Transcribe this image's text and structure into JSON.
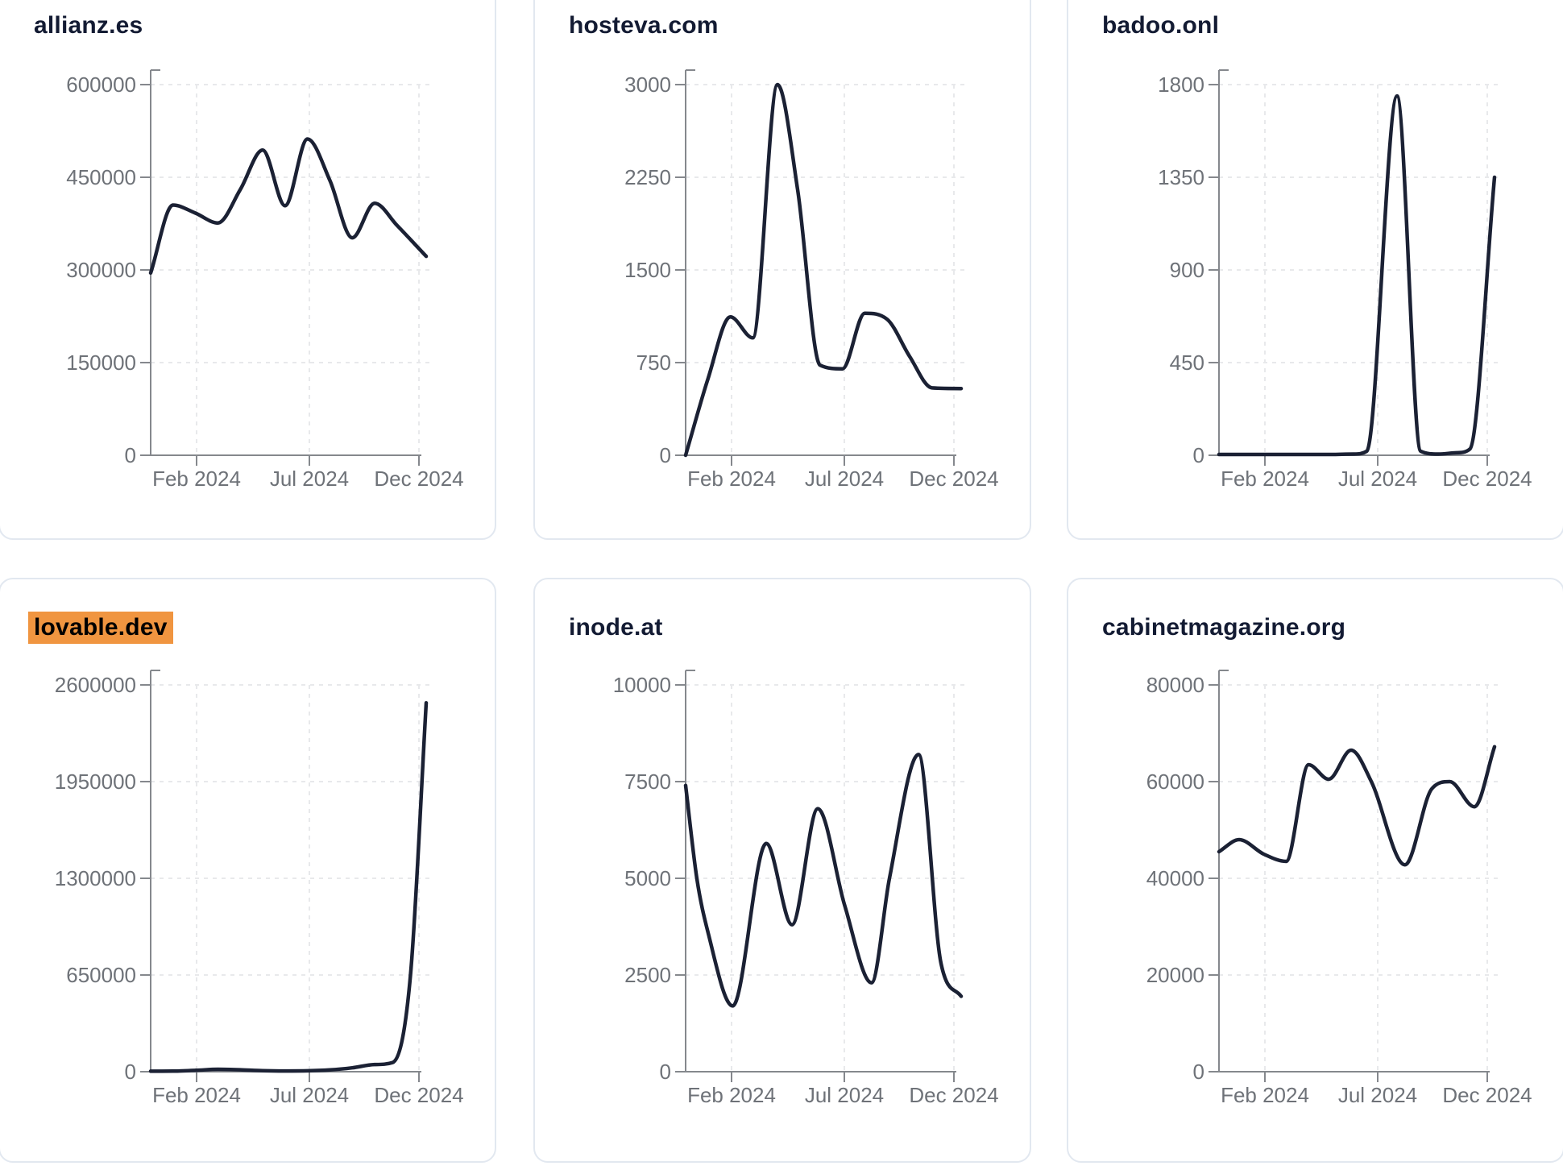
{
  "colors": {
    "line": "#1b2134",
    "title_text": "#131b33",
    "highlight": "#f09540",
    "highlight_text": "#000000",
    "axis": "#85888d",
    "grid": "#e8e9eb",
    "tick_text": "#6e7278",
    "card_border": "#e2e8f0",
    "background": "#ffffff"
  },
  "chart_data": [
    {
      "type": "line",
      "title": "allianz.es",
      "highlighted": false,
      "x_unit": "months (Jan 2024 - Jan 2025)",
      "x_tick_labels": [
        "Feb 2024",
        "Jul 2024",
        "Dec 2024"
      ],
      "y_ticks": [
        0,
        150000,
        300000,
        450000,
        600000
      ],
      "y_max": 600000,
      "points": [
        [
          0,
          295000
        ],
        [
          1,
          405000
        ],
        [
          2,
          392000
        ],
        [
          3,
          376000
        ],
        [
          4,
          430000
        ],
        [
          5,
          494000
        ],
        [
          6,
          404000
        ],
        [
          7,
          512000
        ],
        [
          8,
          445000
        ],
        [
          9,
          352000
        ],
        [
          10,
          408000
        ],
        [
          11,
          372000
        ],
        [
          12.3,
          322000
        ]
      ]
    },
    {
      "type": "line",
      "title": "hosteva.com",
      "highlighted": false,
      "x_unit": "months (Jan 2024 - Jan 2025)",
      "x_tick_labels": [
        "Feb 2024",
        "Jul 2024",
        "Dec 2024"
      ],
      "y_ticks": [
        0,
        750,
        1500,
        2250,
        3000
      ],
      "y_max": 3000,
      "points": [
        [
          0,
          0
        ],
        [
          1,
          620
        ],
        [
          2,
          1120
        ],
        [
          3,
          950
        ],
        [
          4.1,
          3000
        ],
        [
          5,
          2150
        ],
        [
          6,
          730
        ],
        [
          7,
          700
        ],
        [
          8,
          1150
        ],
        [
          9,
          1100
        ],
        [
          10,
          800
        ],
        [
          11,
          545
        ],
        [
          12.3,
          540
        ]
      ]
    },
    {
      "type": "line",
      "title": "badoo.onl",
      "highlighted": false,
      "x_unit": "months (Jan 2024 - Jan 2025)",
      "x_tick_labels": [
        "Feb 2024",
        "Jul 2024",
        "Dec 2024"
      ],
      "y_ticks": [
        0,
        450,
        900,
        1350,
        1800
      ],
      "y_max": 1800,
      "points": [
        [
          0,
          4
        ],
        [
          1,
          4
        ],
        [
          2,
          4
        ],
        [
          3,
          4
        ],
        [
          4,
          4
        ],
        [
          5,
          4
        ],
        [
          6,
          6
        ],
        [
          6.6,
          20
        ],
        [
          7.95,
          1745
        ],
        [
          9,
          20
        ],
        [
          9.8,
          6
        ],
        [
          10.6,
          12
        ],
        [
          11.2,
          30
        ],
        [
          12.3,
          1350
        ]
      ]
    },
    {
      "type": "line",
      "title": "lovable.dev",
      "highlighted": true,
      "x_unit": "months (Jan 2024 - Jan 2025)",
      "x_tick_labels": [
        "Feb 2024",
        "Jul 2024",
        "Dec 2024"
      ],
      "y_ticks": [
        0,
        650000,
        1300000,
        1950000,
        2600000
      ],
      "y_max": 2600000,
      "points": [
        [
          0,
          3000
        ],
        [
          1,
          4000
        ],
        [
          2,
          9000
        ],
        [
          3,
          16000
        ],
        [
          4,
          13000
        ],
        [
          5,
          7000
        ],
        [
          6,
          5000
        ],
        [
          7,
          6000
        ],
        [
          8,
          12000
        ],
        [
          9,
          26000
        ],
        [
          10,
          48000
        ],
        [
          10.8,
          62000
        ],
        [
          11.6,
          650000
        ],
        [
          12.3,
          2480000
        ]
      ]
    },
    {
      "type": "line",
      "title": "inode.at",
      "highlighted": false,
      "x_unit": "months (Jan 2024 - Jan 2025)",
      "x_tick_labels": [
        "Feb 2024",
        "Jul 2024",
        "Dec 2024"
      ],
      "y_ticks": [
        0,
        2500,
        5000,
        7500,
        10000
      ],
      "y_max": 10000,
      "points": [
        [
          0,
          7400
        ],
        [
          0.5,
          5000
        ],
        [
          1,
          3600
        ],
        [
          2.1,
          1700
        ],
        [
          3.6,
          5900
        ],
        [
          4.75,
          3800
        ],
        [
          5.9,
          6800
        ],
        [
          7.1,
          4300
        ],
        [
          8.3,
          2300
        ],
        [
          9.1,
          5000
        ],
        [
          10.4,
          8200
        ],
        [
          11.4,
          2800
        ],
        [
          12.3,
          1950
        ]
      ]
    },
    {
      "type": "line",
      "title": "cabinetmagazine.org",
      "highlighted": false,
      "x_unit": "months (Jan 2024 - Jan 2025)",
      "x_tick_labels": [
        "Feb 2024",
        "Jul 2024",
        "Dec 2024"
      ],
      "y_ticks": [
        0,
        20000,
        40000,
        60000,
        80000
      ],
      "y_max": 80000,
      "points": [
        [
          0,
          45500
        ],
        [
          0.9,
          48000
        ],
        [
          2,
          45000
        ],
        [
          3,
          43500
        ],
        [
          4,
          63500
        ],
        [
          4.9,
          60500
        ],
        [
          5.9,
          66500
        ],
        [
          6.8,
          60000
        ],
        [
          8.3,
          42800
        ],
        [
          9.5,
          58500
        ],
        [
          10.3,
          60000
        ],
        [
          11.4,
          54800
        ],
        [
          12.3,
          67200
        ]
      ]
    }
  ]
}
